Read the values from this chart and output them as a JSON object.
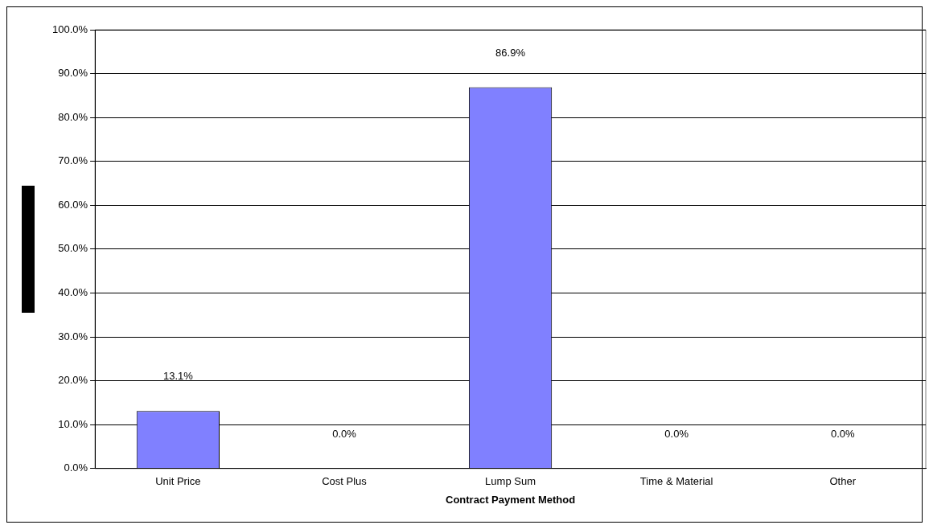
{
  "chart_data": {
    "type": "bar",
    "xlabel": "Contract Payment Method",
    "categories": [
      "Unit Price",
      "Cost Plus",
      "Lump Sum",
      "Time & Material",
      "Other"
    ],
    "values": [
      13.1,
      0.0,
      86.9,
      0.0,
      0.0
    ],
    "value_labels": [
      "13.1%",
      "0.0%",
      "86.9%",
      "0.0%",
      "0.0%"
    ],
    "color": "#8080ff",
    "ylim": [
      0,
      100
    ],
    "yticks": [
      {
        "value": 0,
        "label": "0.0%"
      },
      {
        "value": 10,
        "label": "10.0%"
      },
      {
        "value": 20,
        "label": "20.0%"
      },
      {
        "value": 30,
        "label": "30.0%"
      },
      {
        "value": 40,
        "label": "40.0%"
      },
      {
        "value": 50,
        "label": "50.0%"
      },
      {
        "value": 60,
        "label": "60.0%"
      },
      {
        "value": 70,
        "label": "70.0%"
      },
      {
        "value": 80,
        "label": "80.0%"
      },
      {
        "value": 90,
        "label": "90.0%"
      },
      {
        "value": 100,
        "label": "100.0%"
      }
    ],
    "grid": "y",
    "legend": false
  }
}
